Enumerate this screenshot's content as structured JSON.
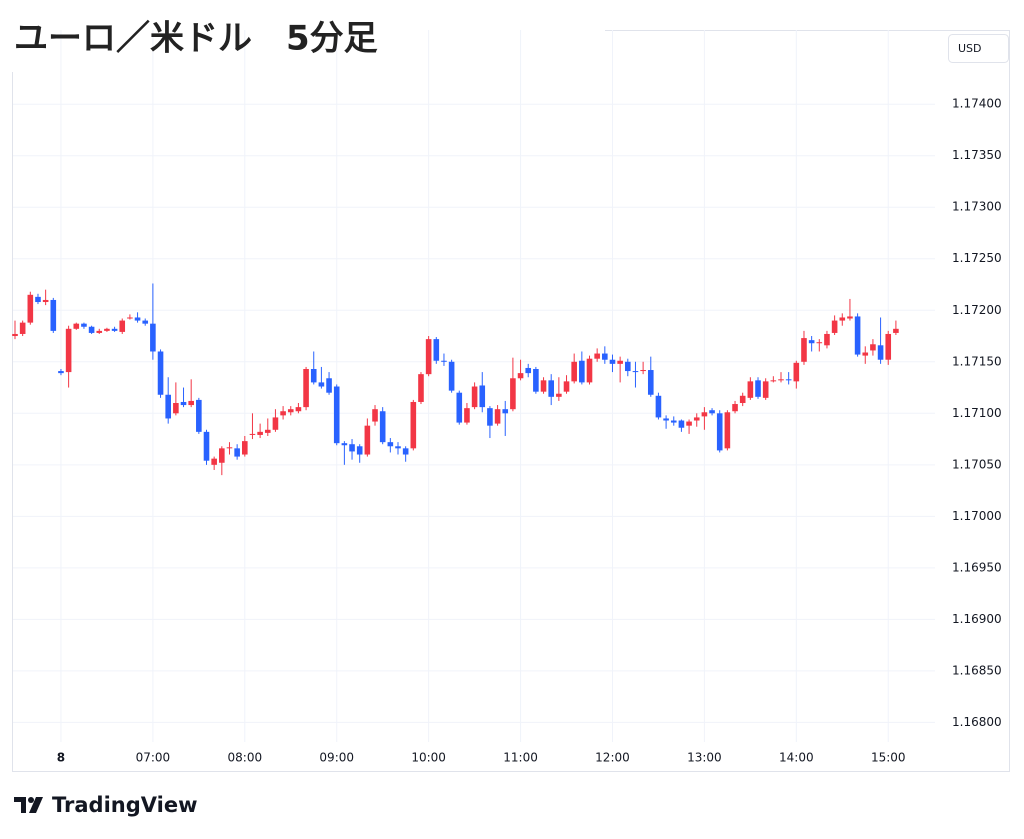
{
  "chart_data": {
    "type": "candlestick",
    "title": "ユーロ／米ドル　5分足",
    "currency": "USD",
    "brand": "TradingView",
    "up_color": "#f23645",
    "down_color": "#2962ff",
    "grid": true,
    "x": [
      "05:30",
      "05:35",
      "05:40",
      "05:45",
      "05:50",
      "05:55",
      "06:00",
      "06:05",
      "06:10",
      "06:15",
      "06:20",
      "06:25",
      "06:30",
      "06:35",
      "06:40",
      "06:45",
      "06:50",
      "06:55",
      "07:00",
      "07:05",
      "07:10",
      "07:15",
      "07:20",
      "07:25",
      "07:30",
      "07:35",
      "07:40",
      "07:45",
      "07:50",
      "07:55",
      "08:00",
      "08:05",
      "08:10",
      "08:15",
      "08:20",
      "08:25",
      "08:30",
      "08:35",
      "08:40",
      "08:45",
      "08:50",
      "08:55",
      "09:00",
      "09:05",
      "09:10",
      "09:15",
      "09:20",
      "09:25",
      "09:30",
      "09:35",
      "09:40",
      "09:45",
      "09:50",
      "09:55",
      "10:00",
      "10:05",
      "10:10",
      "10:15",
      "10:20",
      "10:25",
      "10:30",
      "10:35",
      "10:40",
      "10:45",
      "10:50",
      "10:55",
      "11:00",
      "11:05",
      "11:10",
      "11:15",
      "11:20",
      "11:25",
      "11:30",
      "11:35",
      "11:40",
      "11:45",
      "11:50",
      "11:55",
      "12:00",
      "12:05",
      "12:10",
      "12:15",
      "12:20",
      "12:25",
      "12:30",
      "12:35",
      "12:40",
      "12:45",
      "12:50",
      "12:55",
      "13:00",
      "13:05",
      "13:10",
      "13:15",
      "13:20",
      "13:25",
      "13:30",
      "13:35",
      "13:40",
      "13:45",
      "13:50",
      "13:55",
      "14:00",
      "14:05",
      "14:10",
      "14:15",
      "14:20",
      "14:25",
      "14:30",
      "14:35",
      "14:40",
      "14:45",
      "14:50",
      "14:55",
      "15:00",
      "15:05"
    ],
    "open": [
      1.17175,
      1.17177,
      1.17188,
      1.17213,
      1.17208,
      1.1721,
      1.17141,
      1.1714,
      1.17182,
      1.17187,
      1.17184,
      1.17178,
      1.1718,
      1.17182,
      1.17179,
      1.17192,
      1.17193,
      1.1719,
      1.17187,
      1.1716,
      1.17118,
      1.171,
      1.17111,
      1.17108,
      1.17113,
      1.17082,
      1.1705,
      1.17052,
      1.17066,
      1.17066,
      1.1706,
      1.17079,
      1.17079,
      1.17081,
      1.17084,
      1.17098,
      1.17101,
      1.17102,
      1.17106,
      1.17143,
      1.1713,
      1.17134,
      1.17126,
      1.17071,
      1.1707,
      1.17068,
      1.1706,
      1.17092,
      1.17102,
      1.17072,
      1.17068,
      1.17066,
      1.17066,
      1.17111,
      1.17138,
      1.17172,
      1.17151,
      1.1715,
      1.1712,
      1.17091,
      1.17106,
      1.17127,
      1.17105,
      1.1709,
      1.17104,
      1.17104,
      1.17134,
      1.17144,
      1.17143,
      1.17121,
      1.17132,
      1.17116,
      1.17121,
      1.17131,
      1.17151,
      1.1713,
      1.17153,
      1.17158,
      1.17152,
      1.17148,
      1.1715,
      1.17141,
      1.17141,
      1.17142,
      1.17117,
      1.17095,
      1.17093,
      1.17093,
      1.17088,
      1.17093,
      1.17097,
      1.17103,
      1.171,
      1.17066,
      1.17102,
      1.1711,
      1.17115,
      1.17132,
      1.17115,
      1.17131,
      1.17132,
      1.17133,
      1.17131,
      1.1715,
      1.17171,
      1.17168,
      1.17166,
      1.17178,
      1.1719,
      1.17192,
      1.17194,
      1.17156,
      1.17161,
      1.17166,
      1.17152,
      1.17178
    ],
    "high": [
      1.1719,
      1.1719,
      1.17218,
      1.17216,
      1.1722,
      1.17212,
      1.17143,
      1.17185,
      1.17188,
      1.17188,
      1.17185,
      1.17182,
      1.17183,
      1.17184,
      1.17192,
      1.17196,
      1.17198,
      1.17192,
      1.17226,
      1.17162,
      1.17135,
      1.1713,
      1.17125,
      1.17133,
      1.17115,
      1.17084,
      1.17058,
      1.17068,
      1.17072,
      1.1707,
      1.17078,
      1.171,
      1.1709,
      1.17095,
      1.17104,
      1.17107,
      1.17107,
      1.1711,
      1.17145,
      1.1716,
      1.17145,
      1.1714,
      1.17128,
      1.17073,
      1.17075,
      1.1707,
      1.17095,
      1.17108,
      1.17106,
      1.17076,
      1.17072,
      1.17068,
      1.17113,
      1.1714,
      1.17175,
      1.17174,
      1.17158,
      1.17152,
      1.17122,
      1.1711,
      1.1713,
      1.1714,
      1.17107,
      1.17108,
      1.17112,
      1.17154,
      1.17152,
      1.17148,
      1.17145,
      1.17135,
      1.17138,
      1.17135,
      1.17137,
      1.17158,
      1.1716,
      1.17156,
      1.17163,
      1.17165,
      1.17157,
      1.17155,
      1.17153,
      1.1715,
      1.1715,
      1.17155,
      1.1712,
      1.17098,
      1.17097,
      1.17094,
      1.17094,
      1.171,
      1.17106,
      1.17105,
      1.17103,
      1.17103,
      1.17112,
      1.1712,
      1.17135,
      1.17135,
      1.17134,
      1.17136,
      1.1714,
      1.1714,
      1.17151,
      1.1718,
      1.17175,
      1.17172,
      1.1718,
      1.17195,
      1.17197,
      1.17211,
      1.17197,
      1.17165,
      1.17172,
      1.17193,
      1.1718,
      1.1719
    ],
    "low": [
      1.17172,
      1.17175,
      1.17186,
      1.17206,
      1.17205,
      1.17178,
      1.17137,
      1.17125,
      1.17181,
      1.17182,
      1.17177,
      1.17177,
      1.17179,
      1.17179,
      1.17177,
      1.17191,
      1.17188,
      1.17185,
      1.17152,
      1.17115,
      1.1709,
      1.17098,
      1.17106,
      1.17106,
      1.1708,
      1.1705,
      1.17045,
      1.1704,
      1.1706,
      1.17055,
      1.17058,
      1.17075,
      1.17076,
      1.17078,
      1.17082,
      1.17094,
      1.17098,
      1.171,
      1.17103,
      1.17128,
      1.17124,
      1.17118,
      1.17069,
      1.1705,
      1.17055,
      1.17052,
      1.17058,
      1.17088,
      1.1707,
      1.17062,
      1.1706,
      1.17053,
      1.17064,
      1.17109,
      1.17136,
      1.17148,
      1.17146,
      1.1712,
      1.17089,
      1.17089,
      1.17104,
      1.17101,
      1.17076,
      1.17088,
      1.17078,
      1.17102,
      1.17132,
      1.17135,
      1.17119,
      1.17119,
      1.17108,
      1.17112,
      1.17119,
      1.17129,
      1.17128,
      1.17128,
      1.1715,
      1.17148,
      1.1714,
      1.1713,
      1.17136,
      1.17125,
      1.17138,
      1.17116,
      1.17094,
      1.17085,
      1.17088,
      1.17082,
      1.1708,
      1.17087,
      1.17084,
      1.17098,
      1.17062,
      1.17064,
      1.171,
      1.17107,
      1.17113,
      1.17114,
      1.17113,
      1.1713,
      1.1713,
      1.17128,
      1.17124,
      1.17147,
      1.1716,
      1.1716,
      1.17163,
      1.17176,
      1.17185,
      1.1719,
      1.17155,
      1.17148,
      1.17156,
      1.17148,
      1.17147,
      1.17176
    ],
    "close": [
      1.17177,
      1.17188,
      1.17215,
      1.17208,
      1.1721,
      1.1718,
      1.17139,
      1.17182,
      1.17187,
      1.17184,
      1.17178,
      1.1718,
      1.17182,
      1.1718,
      1.1719,
      1.17193,
      1.1719,
      1.17187,
      1.1716,
      1.17118,
      1.17095,
      1.1711,
      1.17108,
      1.17112,
      1.17082,
      1.17054,
      1.17056,
      1.17066,
      1.17067,
      1.17058,
      1.17073,
      1.1708,
      1.17082,
      1.17084,
      1.17096,
      1.17102,
      1.17104,
      1.17106,
      1.17143,
      1.1713,
      1.17126,
      1.1712,
      1.17071,
      1.17069,
      1.17063,
      1.1706,
      1.17088,
      1.17104,
      1.17072,
      1.17068,
      1.17066,
      1.1706,
      1.17111,
      1.17138,
      1.17172,
      1.17151,
      1.1715,
      1.17122,
      1.17091,
      1.17105,
      1.17126,
      1.17106,
      1.17088,
      1.17104,
      1.171,
      1.17134,
      1.17139,
      1.17139,
      1.17121,
      1.17132,
      1.17116,
      1.17119,
      1.17131,
      1.1715,
      1.1713,
      1.17153,
      1.17158,
      1.17152,
      1.17148,
      1.17151,
      1.17141,
      1.1714,
      1.17142,
      1.17118,
      1.17096,
      1.17093,
      1.17091,
      1.17086,
      1.17092,
      1.17096,
      1.17101,
      1.171,
      1.17064,
      1.17101,
      1.17109,
      1.17117,
      1.17131,
      1.17116,
      1.17131,
      1.17132,
      1.17133,
      1.17132,
      1.17149,
      1.17173,
      1.17168,
      1.17169,
      1.17177,
      1.1719,
      1.17193,
      1.17194,
      1.17157,
      1.17159,
      1.17167,
      1.17152,
      1.17177,
      1.17182
    ],
    "ylim": [
      1.16781,
      1.17472
    ],
    "yticks": [
      {
        "value": 1.168,
        "label": "1.16800"
      },
      {
        "value": 1.1685,
        "label": "1.16850"
      },
      {
        "value": 1.169,
        "label": "1.16900"
      },
      {
        "value": 1.1695,
        "label": "1.16950"
      },
      {
        "value": 1.17,
        "label": "1.17000"
      },
      {
        "value": 1.1705,
        "label": "1.17050"
      },
      {
        "value": 1.171,
        "label": "1.17100"
      },
      {
        "value": 1.1715,
        "label": "1.17150"
      },
      {
        "value": 1.172,
        "label": "1.17200"
      },
      {
        "value": 1.1725,
        "label": "1.17250"
      },
      {
        "value": 1.173,
        "label": "1.17300"
      },
      {
        "value": 1.1735,
        "label": "1.17350"
      },
      {
        "value": 1.174,
        "label": "1.17400"
      }
    ],
    "xticks": [
      {
        "value": "06:00",
        "label": "8"
      },
      "07:00",
      "08:00",
      "09:00",
      "10:00",
      "11:00",
      "12:00",
      "13:00",
      "14:00",
      "15:00"
    ]
  }
}
